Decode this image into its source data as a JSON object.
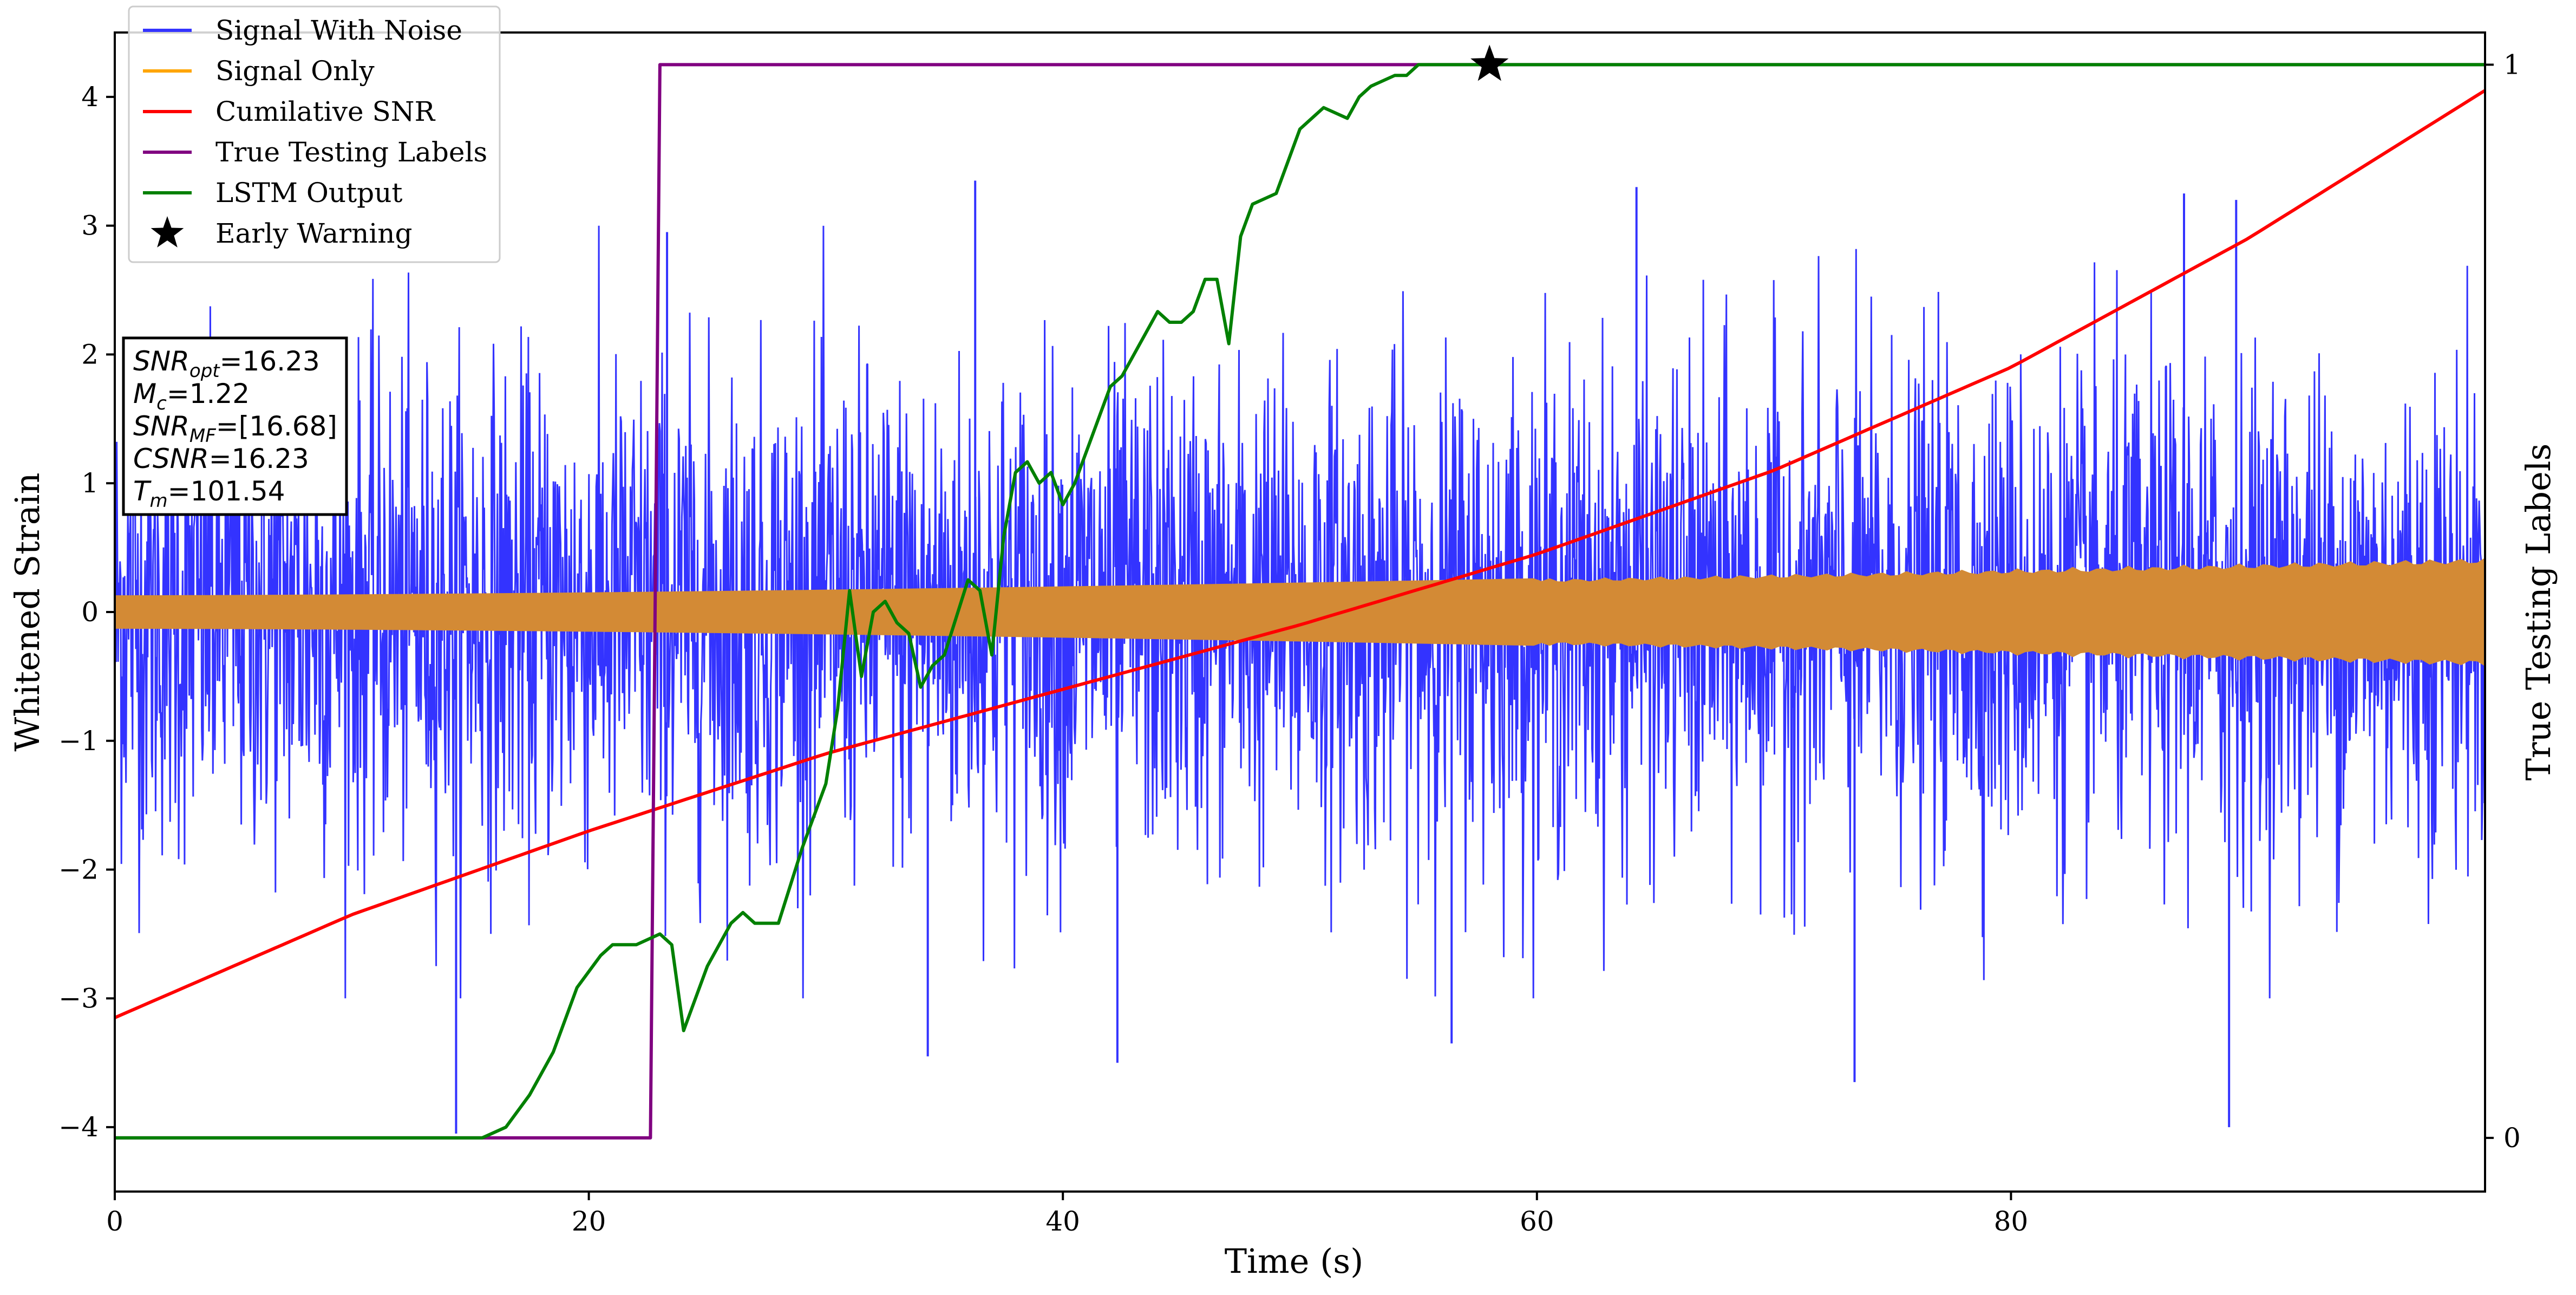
{
  "chart_data": {
    "type": "line",
    "xlabel": "Time (s)",
    "ylabel": "Whitened Strain",
    "y2label": "True Testing Labels",
    "xlim": [
      0,
      100
    ],
    "ylim": [
      -4.5,
      4.5
    ],
    "y2lim": [
      -0.05,
      1.03
    ],
    "xticks": [
      0,
      20,
      40,
      60,
      80
    ],
    "yticks": [
      -4,
      -3,
      -2,
      -1,
      0,
      1,
      2,
      3,
      4
    ],
    "yticklabels": [
      "−4",
      "−3",
      "−2",
      "−1",
      "0",
      "1",
      "2",
      "3",
      "4"
    ],
    "y2ticks": [
      0,
      1
    ],
    "grid": false,
    "legend_position": "top-left",
    "series": [
      {
        "name": "Signal With Noise",
        "color": "#3333ff",
        "axis": "left",
        "style": "dense noise band",
        "band_core_min": -1.0,
        "band_core_max": 1.0,
        "extreme_spikes": [
          {
            "x": 14.4,
            "y": -4.05
          },
          {
            "x": 23.3,
            "y": 2.95
          },
          {
            "x": 34.3,
            "y": -3.45
          },
          {
            "x": 36.3,
            "y": 3.35
          },
          {
            "x": 42.3,
            "y": -3.5
          },
          {
            "x": 56.4,
            "y": -3.35
          },
          {
            "x": 64.2,
            "y": 3.3
          },
          {
            "x": 73.4,
            "y": -3.65
          },
          {
            "x": 87.3,
            "y": 3.25
          },
          {
            "x": 89.2,
            "y": -4.0
          },
          {
            "x": 89.5,
            "y": 3.2
          }
        ]
      },
      {
        "name": "Signal Only",
        "color": "#ffa500",
        "axis": "left",
        "style": "chirp envelope",
        "amplitude_start": 0.13,
        "amplitude_end": 0.43
      },
      {
        "name": "Cumilative SNR",
        "color": "#ff0000",
        "axis": "left",
        "x": [
          0,
          10,
          20,
          30,
          40,
          50,
          60,
          70,
          80,
          90,
          100
        ],
        "y": [
          -3.15,
          -2.35,
          -1.7,
          -1.1,
          -0.6,
          -0.1,
          0.45,
          1.1,
          1.9,
          2.9,
          4.05
        ]
      },
      {
        "name": "True Testing Labels",
        "color": "#800080",
        "axis": "right",
        "x": [
          0,
          22.6,
          23.0,
          100
        ],
        "y": [
          0,
          0,
          1,
          1
        ]
      },
      {
        "name": "LSTM Output",
        "color": "#008000",
        "axis": "right",
        "x": [
          0,
          15.5,
          16.5,
          17.5,
          18.5,
          19.5,
          20.5,
          21.0,
          22.0,
          23.0,
          23.5,
          24.0,
          24.5,
          25.0,
          26.0,
          26.5,
          27.0,
          28.0,
          29.0,
          29.5,
          30.0,
          30.5,
          31.0,
          31.5,
          32.0,
          32.5,
          33.0,
          33.5,
          34.0,
          34.5,
          35.0,
          36.0,
          36.5,
          37.0,
          37.5,
          38.0,
          38.5,
          39.0,
          39.5,
          40.0,
          40.5,
          41.0,
          41.5,
          42.0,
          42.5,
          43.0,
          43.5,
          44.0,
          44.5,
          45.0,
          45.5,
          46.0,
          46.5,
          47.0,
          47.5,
          48.0,
          49.0,
          49.5,
          50.0,
          50.5,
          51.0,
          52.0,
          52.5,
          53.0,
          54.0,
          54.5,
          55.0,
          56.0,
          57.0,
          58.0,
          60.0,
          100
        ],
        "y": [
          0,
          0,
          0.01,
          0.04,
          0.08,
          0.14,
          0.17,
          0.18,
          0.18,
          0.19,
          0.18,
          0.1,
          0.13,
          0.16,
          0.2,
          0.21,
          0.2,
          0.2,
          0.27,
          0.3,
          0.33,
          0.4,
          0.51,
          0.43,
          0.49,
          0.5,
          0.48,
          0.47,
          0.42,
          0.44,
          0.45,
          0.52,
          0.51,
          0.45,
          0.56,
          0.62,
          0.63,
          0.61,
          0.62,
          0.59,
          0.61,
          0.64,
          0.67,
          0.7,
          0.71,
          0.73,
          0.75,
          0.77,
          0.76,
          0.76,
          0.77,
          0.8,
          0.8,
          0.74,
          0.84,
          0.87,
          0.88,
          0.91,
          0.94,
          0.95,
          0.96,
          0.95,
          0.97,
          0.98,
          0.99,
          0.99,
          1.0,
          1.0,
          1.0,
          1.0,
          1.0,
          1.0
        ]
      },
      {
        "name": "Early Warning",
        "color": "#000000",
        "axis": "right",
        "marker": "star",
        "x": [
          58.0
        ],
        "y": [
          1.0
        ]
      }
    ],
    "annotation_box": {
      "position": "left",
      "lines": [
        {
          "base": "SNR",
          "sub": "opt",
          "value": "=16.23"
        },
        {
          "base": "M",
          "sub": "c",
          "value": "=1.22"
        },
        {
          "base": "SNR",
          "sub": "MF",
          "value": "=[16.68]"
        },
        {
          "base": "CSNR",
          "sub": "",
          "value": "=16.23"
        },
        {
          "base": "T",
          "sub": "m",
          "value": "=101.54"
        }
      ]
    }
  }
}
